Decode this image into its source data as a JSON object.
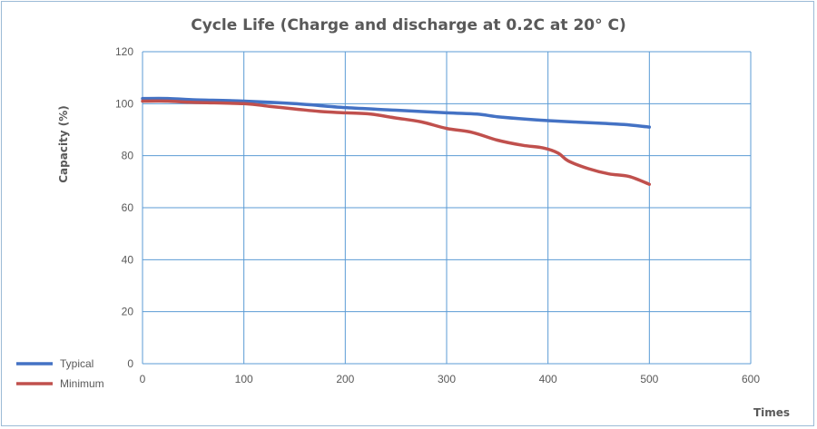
{
  "chart_data": {
    "type": "line",
    "title": "Cycle Life   (Charge and discharge at 0.2C at 20° C)",
    "xlabel": "Times",
    "ylabel": "Capacity (%)",
    "xlim": [
      0,
      600
    ],
    "ylim": [
      0,
      120
    ],
    "x_ticks": [
      0,
      100,
      200,
      300,
      400,
      500,
      600
    ],
    "y_ticks": [
      0,
      20,
      40,
      60,
      80,
      100,
      120
    ],
    "grid": true,
    "legend_position": "bottom-left",
    "series": [
      {
        "name": "Typical",
        "color": "#4472c4",
        "points": [
          [
            0,
            102
          ],
          [
            25,
            102
          ],
          [
            50,
            101.5
          ],
          [
            100,
            101
          ],
          [
            150,
            100
          ],
          [
            200,
            98.5
          ],
          [
            250,
            97.5
          ],
          [
            300,
            96.5
          ],
          [
            330,
            96
          ],
          [
            350,
            95
          ],
          [
            380,
            94
          ],
          [
            400,
            93.5
          ],
          [
            450,
            92.5
          ],
          [
            475,
            92
          ],
          [
            500,
            91
          ]
        ]
      },
      {
        "name": "Minimum",
        "color": "#c0504d",
        "points": [
          [
            0,
            101
          ],
          [
            25,
            101
          ],
          [
            50,
            100.5
          ],
          [
            100,
            100
          ],
          [
            125,
            99
          ],
          [
            150,
            98
          ],
          [
            175,
            97
          ],
          [
            200,
            96.5
          ],
          [
            225,
            96
          ],
          [
            250,
            94.5
          ],
          [
            275,
            93
          ],
          [
            300,
            90.5
          ],
          [
            325,
            89
          ],
          [
            350,
            86
          ],
          [
            375,
            84
          ],
          [
            395,
            83
          ],
          [
            410,
            81
          ],
          [
            420,
            78
          ],
          [
            440,
            75
          ],
          [
            460,
            73
          ],
          [
            480,
            72
          ],
          [
            500,
            69
          ]
        ]
      }
    ]
  }
}
